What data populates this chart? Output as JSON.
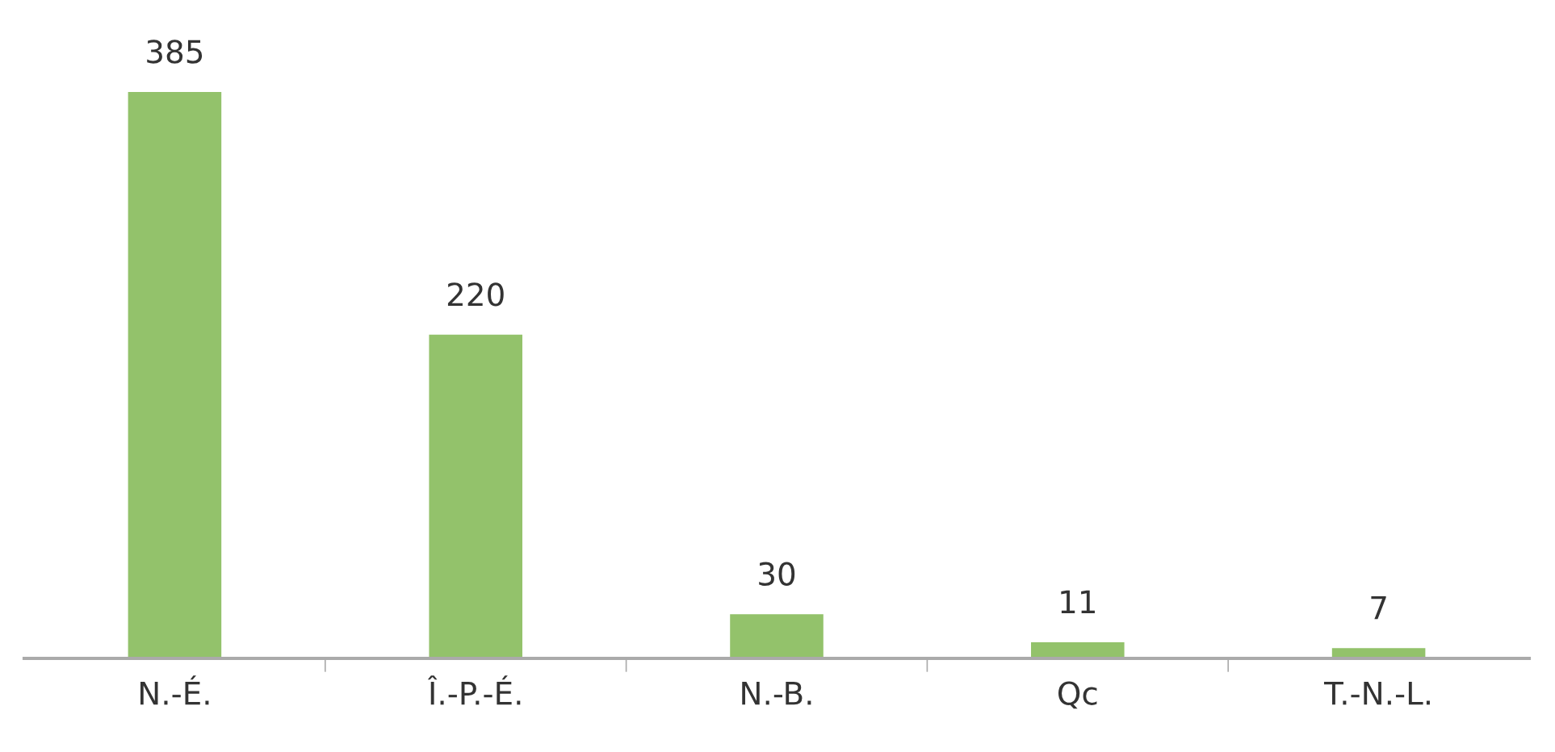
{
  "chart_data": {
    "type": "bar",
    "categories": [
      "N.-É.",
      "Î.-P.-É.",
      "N.-B.",
      "Qc",
      "T.-N.-L."
    ],
    "values": [
      385,
      220,
      30,
      11,
      7
    ],
    "color": "#93c26b",
    "data_labels": true,
    "grid": false,
    "legend": false
  }
}
